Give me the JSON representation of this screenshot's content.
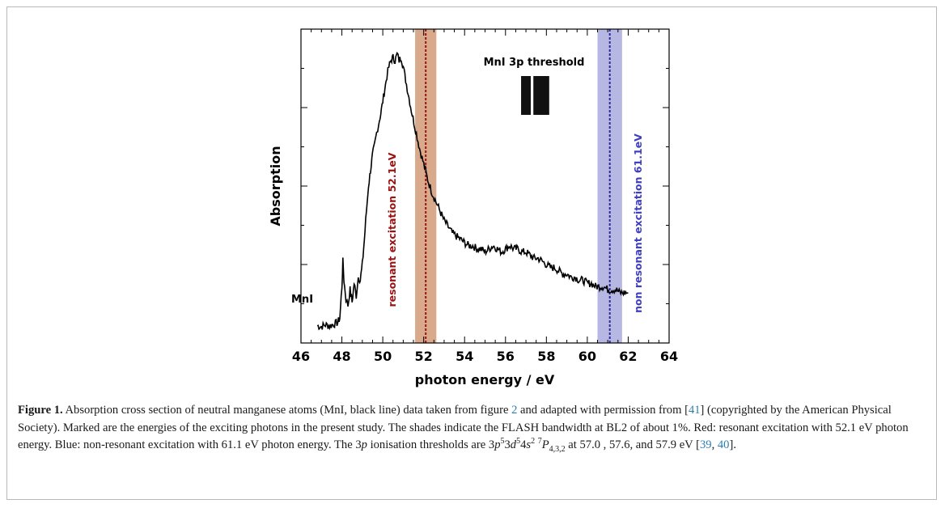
{
  "chart_data": {
    "type": "line",
    "xlabel": "photon energy / eV",
    "ylabel": "Absorption",
    "xlim": [
      46,
      64
    ],
    "xticks": [
      "46",
      "48",
      "50",
      "52",
      "54",
      "56",
      "58",
      "60",
      "62",
      "64"
    ],
    "yticks_labeled": false,
    "series": [
      {
        "name": "MnI",
        "color": "#000000",
        "x": [
          46.8,
          47.0,
          47.2,
          47.4,
          47.6,
          47.8,
          47.9,
          48.0,
          48.05,
          48.1,
          48.2,
          48.3,
          48.4,
          48.5,
          48.6,
          48.7,
          48.8,
          48.9,
          49.0,
          49.1,
          49.2,
          49.3,
          49.4,
          49.5,
          49.6,
          49.7,
          49.8,
          49.9,
          50.0,
          50.1,
          50.2,
          50.3,
          50.4,
          50.5,
          50.6,
          50.7,
          50.8,
          50.9,
          51.0,
          51.2,
          51.4,
          51.6,
          51.8,
          52.0,
          52.2,
          52.4,
          52.6,
          52.8,
          53.0,
          53.2,
          53.4,
          53.6,
          53.8,
          54.0,
          54.2,
          54.4,
          54.6,
          54.8,
          55.0,
          55.2,
          55.4,
          55.6,
          55.8,
          56.0,
          56.2,
          56.4,
          56.6,
          56.8,
          57.0,
          57.2,
          57.4,
          57.6,
          57.8,
          58.0,
          58.2,
          58.4,
          58.6,
          58.8,
          59.0,
          59.2,
          59.4,
          59.6,
          59.8,
          60.0,
          60.2,
          60.4,
          60.6,
          60.8,
          61.0,
          61.2,
          61.4,
          61.6,
          61.8,
          62.0
        ],
        "y": [
          0.055,
          0.052,
          0.058,
          0.054,
          0.06,
          0.065,
          0.08,
          0.18,
          0.26,
          0.2,
          0.14,
          0.12,
          0.17,
          0.13,
          0.19,
          0.15,
          0.21,
          0.2,
          0.25,
          0.33,
          0.42,
          0.5,
          0.55,
          0.6,
          0.63,
          0.67,
          0.7,
          0.73,
          0.77,
          0.81,
          0.85,
          0.88,
          0.9,
          0.91,
          0.9,
          0.92,
          0.9,
          0.91,
          0.88,
          0.81,
          0.74,
          0.68,
          0.62,
          0.57,
          0.52,
          0.48,
          0.45,
          0.42,
          0.39,
          0.37,
          0.35,
          0.34,
          0.33,
          0.32,
          0.31,
          0.31,
          0.3,
          0.3,
          0.29,
          0.3,
          0.31,
          0.3,
          0.29,
          0.3,
          0.31,
          0.3,
          0.3,
          0.29,
          0.29,
          0.28,
          0.27,
          0.27,
          0.26,
          0.25,
          0.24,
          0.24,
          0.23,
          0.22,
          0.22,
          0.21,
          0.21,
          0.2,
          0.2,
          0.19,
          0.19,
          0.18,
          0.18,
          0.18,
          0.17,
          0.17,
          0.17,
          0.16,
          0.16,
          0.16
        ]
      }
    ],
    "bands": [
      {
        "center": 52.1,
        "from": 51.58,
        "to": 52.62,
        "fill": "#d9a98c",
        "line": "#9b1212"
      },
      {
        "center": 61.1,
        "from": 60.5,
        "to": 61.7,
        "fill": "#b7b7e3",
        "line": "#2b2b9c"
      }
    ],
    "annotations": {
      "series_label": "MnI",
      "threshold_label": "MnI 3p threshold",
      "threshold_x": [
        57.0,
        57.6,
        57.9
      ],
      "resonant_label": "resonant  excitation 52.1eV",
      "nonresonant_label": "non resonant excitation 61.1eV",
      "resonant_color": "#9b1212",
      "nonresonant_color": "#3f3fc0"
    }
  },
  "caption": {
    "label": "Figure 1.",
    "text1": " Absorption cross section of neutral manganese atoms (MnI, black line) data taken from figure ",
    "ref_fig": "2",
    "text2": " and adapted with permission from [",
    "ref_41": "41",
    "text3": "] (copyrighted by the American Physical Society). Marked are the energies of the exciting photons in the present study. The shades indicate the FLASH bandwidth at BL2 of about 1%. Red: resonant excitation with 52.1 eV photon energy. Blue: non-resonant excitation with 61.1 eV photon energy. The ",
    "three": "3",
    "p": "p",
    "text4": " ionisation thresholds are ",
    "config_3": "3",
    "config_p": "p",
    "config_sup5a": "5",
    "config_3b": "3",
    "config_d": "d",
    "config_sup5b": "5",
    "config_4": "4",
    "config_s": "s",
    "config_sup2": "2",
    "config_term_sup": "7",
    "config_P": "P",
    "config_sub": "4,3,2",
    "text5": " at 57.0 , 57.6, and 57.9 eV [",
    "ref_39": "39",
    "comma": ", ",
    "ref_40": "40",
    "text6": "]."
  }
}
